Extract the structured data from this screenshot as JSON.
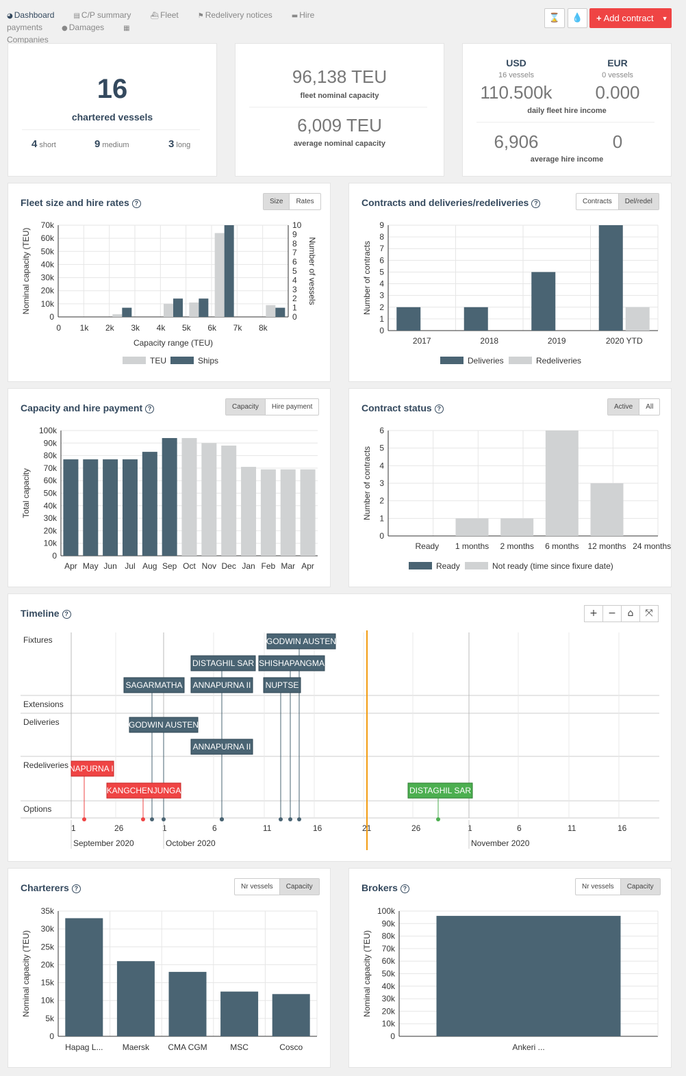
{
  "nav": {
    "dashboard": "Dashboard",
    "cp_summary": "C/P summary",
    "fleet": "Fleet",
    "redelivery_notices": "Redelivery notices",
    "hire_payments": "Hire payments",
    "damages": "Damages",
    "companies": "Companies"
  },
  "header": {
    "add_contract": "Add contract"
  },
  "summary": {
    "chartered_count": "16",
    "chartered_label": "chartered vessels",
    "short_n": "4",
    "short_l": "short",
    "medium_n": "9",
    "medium_l": "medium",
    "long_n": "3",
    "long_l": "long",
    "fleet_capacity": "96,138 TEU",
    "fleet_capacity_label": "fleet nominal capacity",
    "avg_capacity": "6,009 TEU",
    "avg_capacity_label": "average nominal capacity",
    "usd": "USD",
    "usd_vessels": "16 vessels",
    "usd_daily": "110.500k",
    "eur": "EUR",
    "eur_vessels": "0 vessels",
    "eur_daily": "0.000",
    "daily_label": "daily fleet hire income",
    "usd_avg": "6,906",
    "eur_avg": "0",
    "avg_label": "average hire income"
  },
  "panels": {
    "fleet": {
      "title": "Fleet size and hire rates",
      "btn1": "Size",
      "btn2": "Rates"
    },
    "contracts": {
      "title": "Contracts and deliveries/redeliveries",
      "btn1": "Contracts",
      "btn2": "Del/redel"
    },
    "capacity": {
      "title": "Capacity and hire payment",
      "btn1": "Capacity",
      "btn2": "Hire payment"
    },
    "status": {
      "title": "Contract status",
      "btn1": "Active",
      "btn2": "All"
    },
    "timeline": {
      "title": "Timeline"
    },
    "charterers": {
      "title": "Charterers",
      "btn1": "Nr vessels",
      "btn2": "Capacity"
    },
    "brokers": {
      "title": "Brokers",
      "btn1": "Nr vessels",
      "btn2": "Capacity"
    }
  },
  "colors": {
    "dark": "#4a6473",
    "light": "#d0d2d3",
    "red": "#ef4444",
    "green": "#4caf50",
    "orange": "#f39c12"
  },
  "chart_data": [
    {
      "id": "fleet",
      "type": "bar",
      "categories": [
        "0",
        "1k",
        "2k",
        "3k",
        "4k",
        "5k",
        "6k",
        "7k",
        "8k"
      ],
      "series": [
        {
          "name": "TEU",
          "values": [
            0,
            0,
            2000,
            0,
            10000,
            11000,
            64000,
            0,
            9000
          ]
        },
        {
          "name": "Ships",
          "values": [
            0,
            0,
            1,
            0,
            2,
            2,
            10,
            0,
            1
          ]
        }
      ],
      "xlabel": "Capacity range (TEU)",
      "ylabel": "Nominal capacity (TEU)",
      "y2label": "Number of vessels",
      "yticks": [
        "0",
        "10k",
        "20k",
        "30k",
        "40k",
        "50k",
        "60k",
        "70k"
      ],
      "y2ticks": [
        "0",
        "1",
        "2",
        "3",
        "4",
        "5",
        "6",
        "7",
        "8",
        "9",
        "10"
      ],
      "ylim": [
        0,
        70000
      ],
      "y2lim": [
        0,
        10
      ]
    },
    {
      "id": "contracts",
      "type": "bar",
      "categories": [
        "2017",
        "2018",
        "2019",
        "2020 YTD"
      ],
      "series": [
        {
          "name": "Deliveries",
          "values": [
            2,
            2,
            5,
            9
          ]
        },
        {
          "name": "Redeliveries",
          "values": [
            0,
            0,
            0,
            2
          ]
        }
      ],
      "ylabel": "Number of contracts",
      "yticks": [
        "0",
        "1",
        "2",
        "3",
        "4",
        "5",
        "6",
        "7",
        "8",
        "9"
      ],
      "ylim": [
        0,
        9
      ]
    },
    {
      "id": "capacity",
      "type": "bar",
      "categories": [
        "Apr",
        "May",
        "Jun",
        "Jul",
        "Aug",
        "Sep",
        "Oct",
        "Nov",
        "Dec",
        "Jan",
        "Feb",
        "Mar",
        "Apr"
      ],
      "values": [
        77000,
        77000,
        77000,
        77000,
        83000,
        94000,
        94000,
        90000,
        88000,
        71000,
        69000,
        69000,
        69000
      ],
      "past_count": 6,
      "ylabel": "Total capacity",
      "yticks": [
        "0",
        "10k",
        "20k",
        "30k",
        "40k",
        "50k",
        "60k",
        "70k",
        "80k",
        "90k",
        "100k"
      ],
      "ylim": [
        0,
        100000
      ]
    },
    {
      "id": "status",
      "type": "bar",
      "categories": [
        "Ready",
        "1 months",
        "2 months",
        "6 months",
        "12 months",
        "24 months"
      ],
      "series": [
        {
          "name": "Ready",
          "values": [
            0,
            0,
            0,
            0,
            0,
            0
          ]
        },
        {
          "name": "Not ready (time since fixure date)",
          "values": [
            0,
            1,
            1,
            6,
            3,
            0
          ]
        }
      ],
      "ylabel": "Number of contracts",
      "yticks": [
        "0",
        "1",
        "2",
        "3",
        "4",
        "5",
        "6"
      ],
      "ylim": [
        0,
        6
      ]
    },
    {
      "id": "charterers",
      "type": "bar",
      "categories": [
        "Hapag L...",
        "Maersk",
        "CMA CGM",
        "MSC",
        "Cosco"
      ],
      "values": [
        33000,
        21000,
        18000,
        12500,
        11800
      ],
      "ylabel": "Nominal capacity (TEU)",
      "yticks": [
        "0",
        "5k",
        "10k",
        "15k",
        "20k",
        "25k",
        "30k",
        "35k"
      ],
      "ylim": [
        0,
        35000
      ]
    },
    {
      "id": "brokers",
      "type": "bar",
      "categories": [
        "Ankeri ..."
      ],
      "values": [
        96138
      ],
      "ylabel": "Nominal capacity (TEU)",
      "yticks": [
        "0",
        "10k",
        "20k",
        "30k",
        "40k",
        "50k",
        "60k",
        "70k",
        "80k",
        "90k",
        "100k"
      ],
      "ylim": [
        0,
        100000
      ]
    }
  ],
  "timeline": {
    "groups": [
      "Fixtures",
      "Extensions",
      "Deliveries",
      "Redeliveries",
      "Options"
    ],
    "ticks": [
      "1",
      "26",
      "1",
      "6",
      "11",
      "16",
      "21",
      "26",
      "1",
      "6",
      "11",
      "16"
    ],
    "months": [
      "September 2020",
      "October 2020",
      "November 2020"
    ],
    "items": [
      {
        "label": "GODWIN AUSTEN",
        "kind": "fixture"
      },
      {
        "label": "DISTAGHIL SAR",
        "kind": "fixture"
      },
      {
        "label": "SHISHAPANGMA",
        "kind": "fixture"
      },
      {
        "label": "SAGARMATHA",
        "kind": "fixture"
      },
      {
        "label": "ANNAPURNA II",
        "kind": "fixture"
      },
      {
        "label": "NUPTSE",
        "kind": "fixture"
      },
      {
        "label": "GODWIN AUSTEN",
        "kind": "delivery"
      },
      {
        "label": "ANNAPURNA II",
        "kind": "delivery"
      },
      {
        "label": "NAPURNA II",
        "kind": "redelivery"
      },
      {
        "label": "KANGCHENJUNGA",
        "kind": "redelivery"
      },
      {
        "label": "DISTAGHIL SAR",
        "kind": "option"
      }
    ]
  }
}
